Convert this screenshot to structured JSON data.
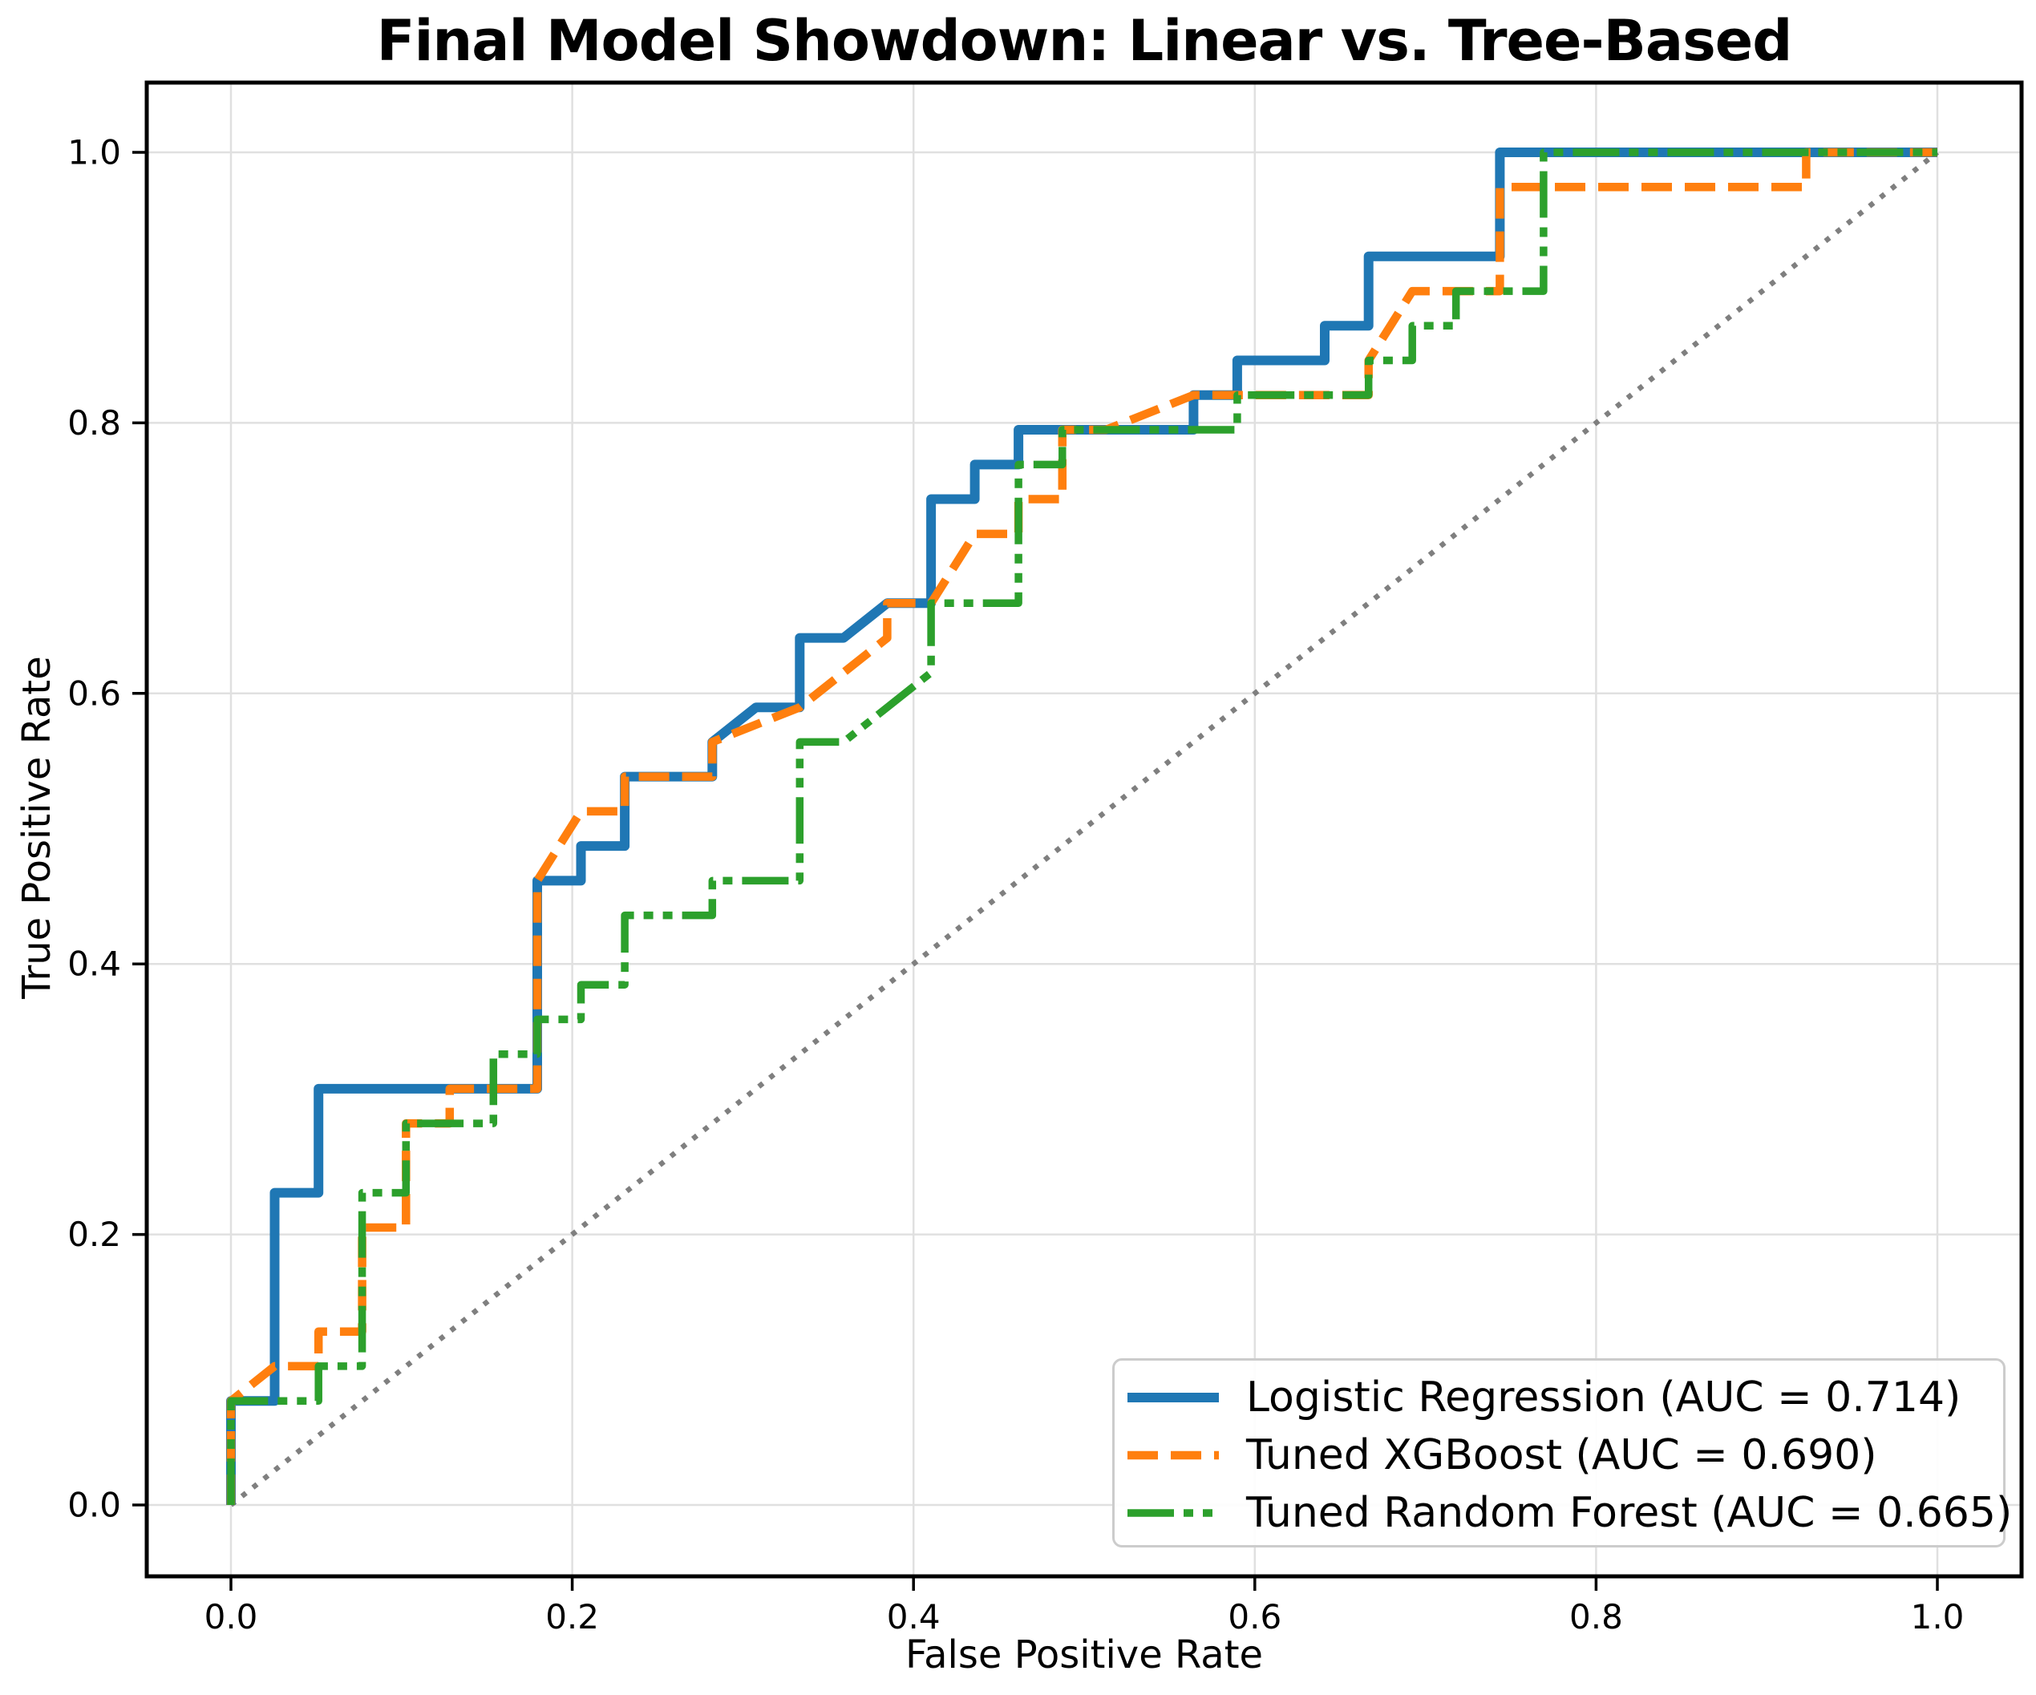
{
  "title": "Final Model Showdown: Linear vs. Tree-Based",
  "axes": {
    "xlabel": "False Positive Rate",
    "ylabel": "True Positive Rate",
    "x_tick_labels": [
      "0.0",
      "0.2",
      "0.4",
      "0.6",
      "0.8",
      "1.0"
    ],
    "y_tick_labels": [
      "0.0",
      "0.2",
      "0.4",
      "0.6",
      "0.8",
      "1.0"
    ]
  },
  "legend": {
    "position": "lower right",
    "items": [
      {
        "label": "Logistic Regression (AUC = 0.714)"
      },
      {
        "label": "Tuned XGBoost (AUC = 0.690)"
      },
      {
        "label": "Tuned Random Forest (AUC = 0.665)"
      }
    ]
  },
  "chart_data": {
    "type": "line",
    "subtype": "roc-curve",
    "title": "Final Model Showdown: Linear vs. Tree-Based",
    "xlabel": "False Positive Rate",
    "ylabel": "True Positive Rate",
    "xlim": [
      -0.05,
      1.05
    ],
    "ylim": [
      -0.05,
      1.05
    ],
    "grid": true,
    "grid_color": "#e0e0e0",
    "legend_position": "lower right",
    "x_axis": {
      "tick_values": [
        0.0,
        0.2,
        0.4,
        0.6,
        0.8,
        1.0
      ],
      "tick_labels": [
        "0.0",
        "0.2",
        "0.4",
        "0.6",
        "0.8",
        "1.0"
      ]
    },
    "y_axis": {
      "tick_values": [
        0.0,
        0.2,
        0.4,
        0.6,
        0.8,
        1.0
      ],
      "tick_labels": [
        "0.0",
        "0.2",
        "0.4",
        "0.6",
        "0.8",
        "1.0"
      ]
    },
    "series": [
      {
        "key": "logistic-regression",
        "name": "Logistic Regression",
        "auc": 0.714,
        "color": "#1f77b4",
        "linestyle": "solid",
        "linewidth": 12,
        "points": [
          [
            0.0,
            0.0
          ],
          [
            0.0,
            0.0769
          ],
          [
            0.0256,
            0.0769
          ],
          [
            0.0256,
            0.2308
          ],
          [
            0.0513,
            0.2308
          ],
          [
            0.0513,
            0.3077
          ],
          [
            0.1795,
            0.3077
          ],
          [
            0.1795,
            0.4615
          ],
          [
            0.2051,
            0.4615
          ],
          [
            0.2051,
            0.4872
          ],
          [
            0.2308,
            0.4872
          ],
          [
            0.2308,
            0.5385
          ],
          [
            0.2821,
            0.5385
          ],
          [
            0.2821,
            0.5641
          ],
          [
            0.3077,
            0.5897
          ],
          [
            0.3333,
            0.5897
          ],
          [
            0.3333,
            0.641
          ],
          [
            0.359,
            0.641
          ],
          [
            0.3846,
            0.6667
          ],
          [
            0.4103,
            0.6667
          ],
          [
            0.4103,
            0.7436
          ],
          [
            0.4359,
            0.7436
          ],
          [
            0.4359,
            0.7692
          ],
          [
            0.4615,
            0.7692
          ],
          [
            0.4615,
            0.7949
          ],
          [
            0.5641,
            0.7949
          ],
          [
            0.5641,
            0.8205
          ],
          [
            0.5897,
            0.8205
          ],
          [
            0.5897,
            0.8462
          ],
          [
            0.641,
            0.8462
          ],
          [
            0.641,
            0.8718
          ],
          [
            0.6667,
            0.8718
          ],
          [
            0.6667,
            0.9231
          ],
          [
            0.7436,
            0.9231
          ],
          [
            0.7436,
            1.0
          ],
          [
            1.0,
            1.0
          ]
        ]
      },
      {
        "key": "tuned-xgboost",
        "name": "Tuned XGBoost",
        "auc": 0.69,
        "color": "#ff7f0e",
        "linestyle": "dashed",
        "linewidth": 10.5,
        "points": [
          [
            0.0,
            0.0
          ],
          [
            0.0,
            0.0769
          ],
          [
            0.0256,
            0.1026
          ],
          [
            0.0513,
            0.1026
          ],
          [
            0.0513,
            0.1282
          ],
          [
            0.0769,
            0.1282
          ],
          [
            0.0769,
            0.2051
          ],
          [
            0.1026,
            0.2051
          ],
          [
            0.1026,
            0.2821
          ],
          [
            0.1282,
            0.2821
          ],
          [
            0.1282,
            0.3077
          ],
          [
            0.1795,
            0.3077
          ],
          [
            0.1795,
            0.4615
          ],
          [
            0.2051,
            0.5128
          ],
          [
            0.2308,
            0.5128
          ],
          [
            0.2308,
            0.5385
          ],
          [
            0.2821,
            0.5385
          ],
          [
            0.2821,
            0.5641
          ],
          [
            0.3333,
            0.5897
          ],
          [
            0.359,
            0.6154
          ],
          [
            0.3846,
            0.641
          ],
          [
            0.3846,
            0.6667
          ],
          [
            0.4103,
            0.6667
          ],
          [
            0.4359,
            0.7179
          ],
          [
            0.4615,
            0.7179
          ],
          [
            0.4615,
            0.7436
          ],
          [
            0.4872,
            0.7436
          ],
          [
            0.4872,
            0.7949
          ],
          [
            0.5128,
            0.7949
          ],
          [
            0.5641,
            0.8205
          ],
          [
            0.6667,
            0.8205
          ],
          [
            0.6667,
            0.8462
          ],
          [
            0.6923,
            0.8974
          ],
          [
            0.7436,
            0.8974
          ],
          [
            0.7436,
            0.9744
          ],
          [
            0.9231,
            0.9744
          ],
          [
            0.9231,
            1.0
          ],
          [
            1.0,
            1.0
          ]
        ]
      },
      {
        "key": "tuned-random-forest",
        "name": "Tuned Random Forest",
        "auc": 0.665,
        "color": "#2ca02c",
        "linestyle": "dashdotdot",
        "linewidth": 9.5,
        "points": [
          [
            0.0,
            0.0
          ],
          [
            0.0,
            0.0769
          ],
          [
            0.0513,
            0.0769
          ],
          [
            0.0513,
            0.1026
          ],
          [
            0.0769,
            0.1026
          ],
          [
            0.0769,
            0.2308
          ],
          [
            0.1026,
            0.2308
          ],
          [
            0.1026,
            0.2821
          ],
          [
            0.1538,
            0.2821
          ],
          [
            0.1538,
            0.3333
          ],
          [
            0.1795,
            0.3333
          ],
          [
            0.1795,
            0.359
          ],
          [
            0.2051,
            0.359
          ],
          [
            0.2051,
            0.3846
          ],
          [
            0.2308,
            0.3846
          ],
          [
            0.2308,
            0.4359
          ],
          [
            0.2821,
            0.4359
          ],
          [
            0.2821,
            0.4615
          ],
          [
            0.3333,
            0.4615
          ],
          [
            0.3333,
            0.5641
          ],
          [
            0.359,
            0.5641
          ],
          [
            0.4103,
            0.6154
          ],
          [
            0.4103,
            0.6667
          ],
          [
            0.4615,
            0.6667
          ],
          [
            0.4615,
            0.7692
          ],
          [
            0.4872,
            0.7692
          ],
          [
            0.4872,
            0.7949
          ],
          [
            0.5897,
            0.7949
          ],
          [
            0.5897,
            0.8205
          ],
          [
            0.6667,
            0.8205
          ],
          [
            0.6667,
            0.8462
          ],
          [
            0.6923,
            0.8462
          ],
          [
            0.6923,
            0.8718
          ],
          [
            0.7179,
            0.8718
          ],
          [
            0.7179,
            0.8974
          ],
          [
            0.7692,
            0.8974
          ],
          [
            0.7692,
            1.0
          ],
          [
            1.0,
            1.0
          ]
        ]
      }
    ],
    "reference_line": {
      "key": "chance-diagonal",
      "color": "#7f7f7f",
      "linestyle": "dotted",
      "linewidth": 6.5,
      "x": [
        0.0,
        1.0
      ],
      "y": [
        0.0,
        1.0
      ]
    }
  }
}
